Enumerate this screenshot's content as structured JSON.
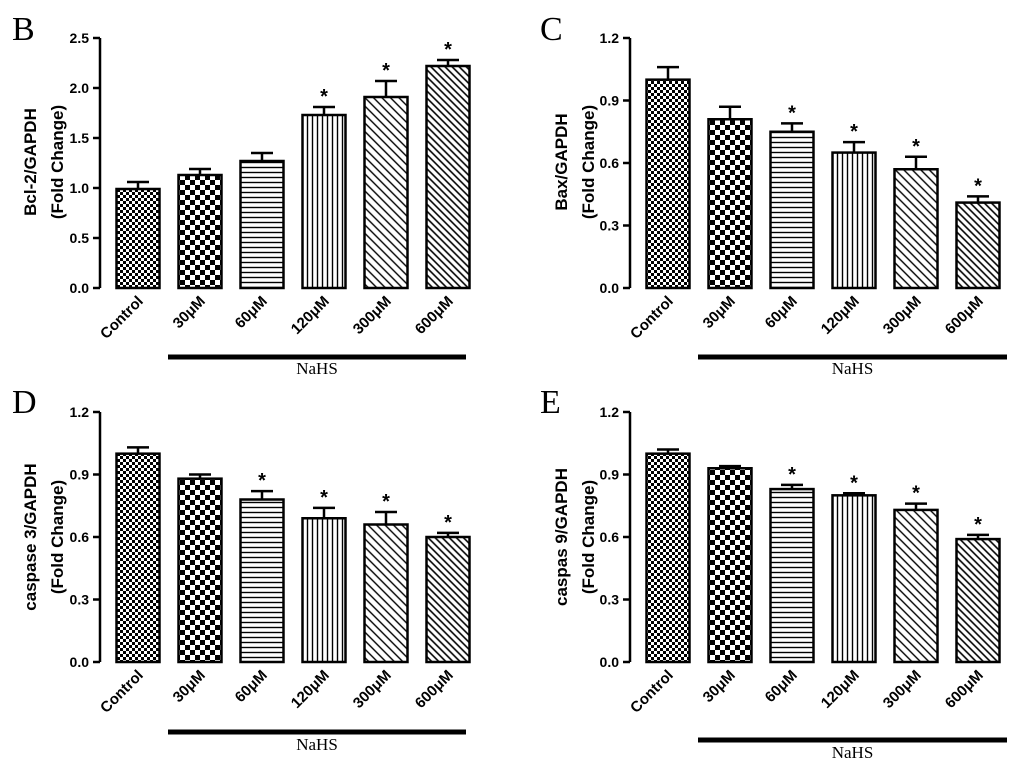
{
  "figure": {
    "group_label": "NaHS"
  },
  "chart_data": [
    {
      "type": "bar",
      "panel_letter": "B",
      "ylabel_line1": "Bcl-2/GAPDH",
      "ylabel_line2": "(Fold Change)",
      "categories": [
        "Control",
        "30μM",
        "60μM",
        "120μM",
        "300μM",
        "600μM"
      ],
      "values": [
        0.99,
        1.13,
        1.27,
        1.73,
        1.91,
        2.22
      ],
      "errors": [
        0.07,
        0.06,
        0.08,
        0.08,
        0.16,
        0.06
      ],
      "significant": [
        false,
        false,
        false,
        true,
        true,
        true
      ],
      "significance_marker": "*",
      "ylim": [
        0,
        2.5
      ],
      "yticks": [
        0.0,
        0.5,
        1.0,
        1.5,
        2.0,
        2.5
      ],
      "ytick_labels": [
        "0.0",
        "0.5",
        "1.0",
        "1.5",
        "2.0",
        "2.5"
      ],
      "xlabel": "NaHS",
      "title": ""
    },
    {
      "type": "bar",
      "panel_letter": "C",
      "ylabel_line1": "Bax/GAPDH",
      "ylabel_line2": "(Fold Change)",
      "categories": [
        "Control",
        "30μM",
        "60μM",
        "120μM",
        "300μM",
        "600μM"
      ],
      "values": [
        1.0,
        0.81,
        0.75,
        0.65,
        0.57,
        0.41
      ],
      "errors": [
        0.06,
        0.06,
        0.04,
        0.05,
        0.06,
        0.03
      ],
      "significant": [
        false,
        false,
        true,
        true,
        true,
        true
      ],
      "significance_marker": "*",
      "ylim": [
        0,
        1.2
      ],
      "yticks": [
        0.0,
        0.3,
        0.6,
        0.9,
        1.2
      ],
      "ytick_labels": [
        "0.0",
        "0.3",
        "0.6",
        "0.9",
        "1.2"
      ],
      "xlabel": "NaHS",
      "title": ""
    },
    {
      "type": "bar",
      "panel_letter": "D",
      "ylabel_line1": "caspase 3/GAPDH",
      "ylabel_line2": "(Fold Change)",
      "categories": [
        "Control",
        "30μM",
        "60μM",
        "120μM",
        "300μM",
        "600μM"
      ],
      "values": [
        1.0,
        0.88,
        0.78,
        0.69,
        0.66,
        0.6
      ],
      "errors": [
        0.03,
        0.02,
        0.04,
        0.05,
        0.06,
        0.02
      ],
      "significant": [
        false,
        false,
        true,
        true,
        true,
        true
      ],
      "significance_marker": "*",
      "ylim": [
        0,
        1.2
      ],
      "yticks": [
        0.0,
        0.3,
        0.6,
        0.9,
        1.2
      ],
      "ytick_labels": [
        "0.0",
        "0.3",
        "0.6",
        "0.9",
        "1.2"
      ],
      "xlabel": "NaHS",
      "title": ""
    },
    {
      "type": "bar",
      "panel_letter": "E",
      "ylabel_line1": "caspas 9/GAPDH",
      "ylabel_line2": "(Fold Change)",
      "categories": [
        "Control",
        "30μM",
        "60μM",
        "120μM",
        "300μM",
        "600μM"
      ],
      "values": [
        1.0,
        0.93,
        0.83,
        0.8,
        0.73,
        0.59
      ],
      "errors": [
        0.02,
        0.01,
        0.02,
        0.01,
        0.03,
        0.02
      ],
      "significant": [
        false,
        false,
        true,
        true,
        true,
        true
      ],
      "significance_marker": "*",
      "ylim": [
        0,
        1.2
      ],
      "yticks": [
        0.0,
        0.3,
        0.6,
        0.9,
        1.2
      ],
      "ytick_labels": [
        "0.0",
        "0.3",
        "0.6",
        "0.9",
        "1.2"
      ],
      "xlabel": "NaHS",
      "title": ""
    }
  ]
}
